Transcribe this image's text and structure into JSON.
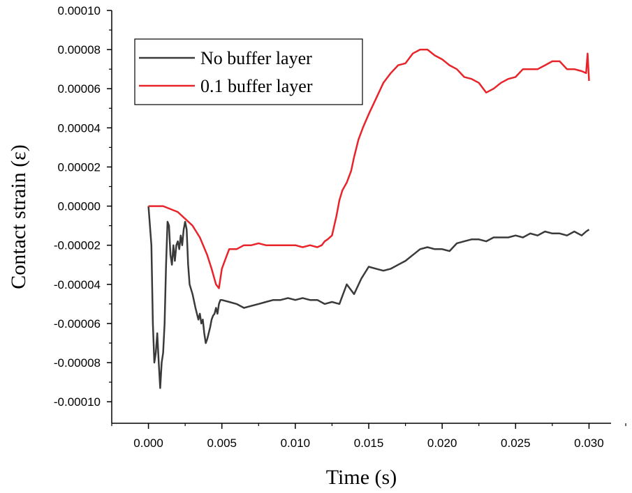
{
  "chart_data": {
    "type": "line",
    "title": "",
    "xlabel": "Time (s)",
    "ylabel": "Contact strain (ε)",
    "xlim": [
      -0.0025,
      0.0315
    ],
    "ylim": [
      -0.000111,
      0.0001
    ],
    "x_ticks": [
      0.0,
      0.005,
      0.01,
      0.015,
      0.02,
      0.025,
      0.03
    ],
    "x_tick_labels": [
      "0.000",
      "0.005",
      "0.010",
      "0.015",
      "0.020",
      "0.025",
      "0.030"
    ],
    "y_ticks": [
      0.0001,
      8e-05,
      6e-05,
      4e-05,
      2e-05,
      0.0,
      -2e-05,
      -4e-05,
      -6e-05,
      -8e-05,
      -0.0001
    ],
    "y_tick_labels": [
      "0.00010",
      "0.00008",
      "0.00006",
      "0.00004",
      "0.00002",
      "0.00000",
      "-0.00002",
      "-0.00004",
      "-0.00006",
      "-0.00008",
      "-0.00010"
    ],
    "grid": false,
    "legend_position": "top-left",
    "series": [
      {
        "name": "No buffer layer",
        "color": "#3a3a3a",
        "x": [
          0.0,
          0.0002,
          0.0003,
          0.0004,
          0.0005,
          0.0006,
          0.0007,
          0.0008,
          0.0009,
          0.001,
          0.0011,
          0.0012,
          0.0013,
          0.0014,
          0.0015,
          0.0016,
          0.0017,
          0.0018,
          0.0019,
          0.002,
          0.0021,
          0.0022,
          0.0023,
          0.0024,
          0.0025,
          0.0026,
          0.0027,
          0.0028,
          0.003,
          0.0032,
          0.0034,
          0.0035,
          0.0036,
          0.0037,
          0.0038,
          0.0039,
          0.004,
          0.0041,
          0.0042,
          0.0043,
          0.0044,
          0.0045,
          0.0046,
          0.0047,
          0.0048,
          0.0049,
          0.005,
          0.0055,
          0.006,
          0.0065,
          0.007,
          0.0075,
          0.008,
          0.0085,
          0.009,
          0.0095,
          0.01,
          0.0105,
          0.011,
          0.0115,
          0.012,
          0.0125,
          0.013,
          0.0135,
          0.014,
          0.0145,
          0.015,
          0.0155,
          0.016,
          0.0165,
          0.017,
          0.0175,
          0.018,
          0.0185,
          0.019,
          0.0195,
          0.02,
          0.0205,
          0.021,
          0.0215,
          0.022,
          0.0225,
          0.023,
          0.0235,
          0.024,
          0.0245,
          0.025,
          0.0255,
          0.026,
          0.0265,
          0.027,
          0.0275,
          0.028,
          0.0285,
          0.029,
          0.0295,
          0.0298,
          0.03
        ],
        "y": [
          0.0,
          -2e-05,
          -6e-05,
          -8e-05,
          -7.5e-05,
          -6.5e-05,
          -8e-05,
          -9.3e-05,
          -8e-05,
          -7.5e-05,
          -6e-05,
          -3e-05,
          -8e-06,
          -1e-05,
          -2.5e-05,
          -3e-05,
          -2e-05,
          -2.8e-05,
          -2e-05,
          -1.8e-05,
          -2.2e-05,
          -1.5e-05,
          -2e-05,
          -1.2e-05,
          -8e-06,
          -1.2e-05,
          -3e-05,
          -4e-05,
          -4.5e-05,
          -5.2e-05,
          -5.8e-05,
          -5.5e-05,
          -6e-05,
          -5.8e-05,
          -6.5e-05,
          -7e-05,
          -6.8e-05,
          -6.5e-05,
          -6.2e-05,
          -5.8e-05,
          -5.6e-05,
          -5.5e-05,
          -5.2e-05,
          -5.5e-05,
          -5e-05,
          -4.8e-05,
          -4.8e-05,
          -4.9e-05,
          -5e-05,
          -5.2e-05,
          -5.1e-05,
          -5e-05,
          -4.9e-05,
          -4.8e-05,
          -4.8e-05,
          -4.7e-05,
          -4.8e-05,
          -4.7e-05,
          -4.8e-05,
          -4.8e-05,
          -5e-05,
          -4.9e-05,
          -5e-05,
          -4e-05,
          -4.5e-05,
          -3.7e-05,
          -3.1e-05,
          -3.2e-05,
          -3.3e-05,
          -3.2e-05,
          -3e-05,
          -2.8e-05,
          -2.5e-05,
          -2.2e-05,
          -2.1e-05,
          -2.2e-05,
          -2.2e-05,
          -2.3e-05,
          -1.9e-05,
          -1.8e-05,
          -1.7e-05,
          -1.7e-05,
          -1.8e-05,
          -1.6e-05,
          -1.6e-05,
          -1.6e-05,
          -1.5e-05,
          -1.6e-05,
          -1.4e-05,
          -1.5e-05,
          -1.3e-05,
          -1.4e-05,
          -1.4e-05,
          -1.5e-05,
          -1.3e-05,
          -1.5e-05,
          -1.3e-05,
          -1.2e-05
        ]
      },
      {
        "name": "0.1 buffer layer",
        "color": "#e8242a",
        "x": [
          0.0,
          0.001,
          0.002,
          0.003,
          0.0035,
          0.004,
          0.0043,
          0.0046,
          0.0048,
          0.005,
          0.0052,
          0.0055,
          0.006,
          0.0065,
          0.007,
          0.0075,
          0.008,
          0.0085,
          0.009,
          0.0095,
          0.01,
          0.0105,
          0.011,
          0.0115,
          0.0118,
          0.012,
          0.0122,
          0.0125,
          0.0128,
          0.013,
          0.0132,
          0.0135,
          0.0138,
          0.014,
          0.0143,
          0.0146,
          0.015,
          0.0155,
          0.016,
          0.0165,
          0.017,
          0.0175,
          0.018,
          0.0185,
          0.019,
          0.0195,
          0.02,
          0.0205,
          0.021,
          0.0215,
          0.022,
          0.0225,
          0.023,
          0.0235,
          0.024,
          0.0245,
          0.025,
          0.0255,
          0.026,
          0.0265,
          0.027,
          0.0275,
          0.028,
          0.0285,
          0.029,
          0.0295,
          0.0298,
          0.0299,
          0.03
        ],
        "y": [
          0.0,
          0.0,
          -3e-06,
          -1e-05,
          -1.6e-05,
          -2.5e-05,
          -3.2e-05,
          -4e-05,
          -4.2e-05,
          -3.2e-05,
          -2.8e-05,
          -2.2e-05,
          -2.2e-05,
          -2e-05,
          -2e-05,
          -1.9e-05,
          -2e-05,
          -2e-05,
          -2e-05,
          -2e-05,
          -2e-05,
          -2.1e-05,
          -2e-05,
          -2.1e-05,
          -2e-05,
          -1.8e-05,
          -1.7e-05,
          -1.5e-05,
          -5e-06,
          3e-06,
          8e-06,
          1.2e-05,
          1.8e-05,
          2.5e-05,
          3.4e-05,
          4e-05,
          4.7e-05,
          5.5e-05,
          6.3e-05,
          6.8e-05,
          7.2e-05,
          7.3e-05,
          7.8e-05,
          8e-05,
          8e-05,
          7.7e-05,
          7.5e-05,
          7.2e-05,
          7e-05,
          6.6e-05,
          6.5e-05,
          6.3e-05,
          5.8e-05,
          6e-05,
          6.3e-05,
          6.5e-05,
          6.6e-05,
          7e-05,
          7e-05,
          7e-05,
          7.2e-05,
          7.4e-05,
          7.4e-05,
          7e-05,
          7e-05,
          6.9e-05,
          6.8e-05,
          7.8e-05,
          6.4e-05
        ]
      }
    ]
  }
}
